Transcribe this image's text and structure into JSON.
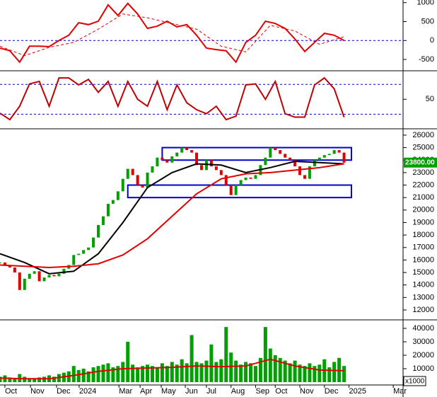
{
  "chart_data": [
    {
      "type": "line",
      "xlim": [
        0,
        82
      ],
      "ylim": [
        -780,
        1070
      ],
      "yticks": [
        1000,
        500,
        0,
        -500
      ],
      "levels": [
        0
      ],
      "level_color": "#0000c0",
      "series": [
        {
          "color": "#e00000",
          "x": [
            0,
            2,
            4,
            6,
            8,
            10,
            12,
            14,
            16,
            18,
            20,
            22,
            24,
            26,
            28,
            30,
            32,
            34,
            36,
            38,
            40,
            42,
            44,
            46,
            48,
            50,
            52,
            54,
            56,
            58,
            60,
            62,
            64,
            66,
            68,
            70
          ],
          "values": [
            -200,
            -270,
            -570,
            -150,
            -150,
            -160,
            0,
            140,
            470,
            420,
            510,
            940,
            660,
            980,
            700,
            320,
            380,
            510,
            360,
            420,
            140,
            -200,
            -240,
            -270,
            -570,
            -50,
            140,
            510,
            450,
            320,
            40,
            -290,
            -50,
            190,
            140,
            0
          ]
        },
        {
          "color": "#e00000",
          "dashed": true,
          "x": [
            0,
            5,
            10,
            15,
            20,
            25,
            30,
            35,
            40,
            45,
            50,
            55,
            60,
            65,
            70
          ],
          "values": [
            -150,
            -400,
            -180,
            -50,
            300,
            700,
            600,
            450,
            300,
            -150,
            -300,
            400,
            250,
            -100,
            100
          ]
        }
      ]
    },
    {
      "type": "line",
      "xlim": [
        0,
        82
      ],
      "ylim": [
        -8,
        106
      ],
      "yticks": [
        50
      ],
      "levels": [
        80,
        20
      ],
      "level_color": "#0000c0",
      "series": [
        {
          "color": "#c00000",
          "x": [
            0,
            2,
            4,
            6,
            8,
            10,
            12,
            14,
            16,
            18,
            20,
            22,
            24,
            26,
            28,
            30,
            32,
            34,
            36,
            38,
            40,
            42,
            44,
            46,
            48,
            50,
            52,
            54,
            56,
            58,
            60,
            62,
            64,
            66,
            68,
            70
          ],
          "values": [
            22,
            9,
            36,
            81,
            86,
            36,
            93,
            93,
            79,
            90,
            64,
            86,
            36,
            86,
            50,
            36,
            86,
            29,
            79,
            43,
            29,
            21,
            36,
            9,
            16,
            79,
            81,
            50,
            86,
            21,
            14,
            14,
            79,
            93,
            71,
            14
          ]
        }
      ]
    },
    {
      "type": "candlestick",
      "xlim": [
        0,
        82
      ],
      "ylim": [
        11320,
        26450
      ],
      "yticks": [
        12000,
        13000,
        14000,
        15000,
        16000,
        17000,
        18000,
        19000,
        20000,
        21000,
        22000,
        23000,
        24000,
        25000,
        26000
      ],
      "up_color": "#00a000",
      "down_color": "#e00000",
      "x": [
        0,
        1,
        2,
        3,
        4,
        5,
        6,
        7,
        8,
        9,
        10,
        11,
        12,
        13,
        14,
        15,
        16,
        17,
        18,
        19,
        20,
        21,
        22,
        23,
        24,
        25,
        26,
        27,
        28,
        29,
        30,
        31,
        32,
        33,
        34,
        35,
        36,
        37,
        38,
        39,
        40,
        41,
        42,
        43,
        44,
        45,
        46,
        47,
        48,
        49,
        50,
        51,
        52,
        53,
        54,
        55,
        56,
        57,
        58,
        59,
        60,
        61,
        62,
        63,
        64,
        65,
        66,
        67,
        68,
        69,
        70
      ],
      "close": [
        15800,
        15600,
        15400,
        15000,
        13600,
        14500,
        14900,
        15100,
        14300,
        14600,
        14800,
        14700,
        14900,
        15300,
        15600,
        16400,
        16500,
        16800,
        17000,
        17800,
        18800,
        19500,
        20500,
        20800,
        21500,
        22500,
        23300,
        22800,
        22000,
        21800,
        23000,
        23500,
        24200,
        24000,
        23800,
        24300,
        24600,
        25000,
        24800,
        24600,
        23600,
        23200,
        24000,
        23500,
        23200,
        22800,
        22000,
        21200,
        22000,
        22400,
        22600,
        22500,
        22800,
        23600,
        24200,
        25000,
        24800,
        24500,
        24200,
        24000,
        23500,
        22800,
        22500,
        23500,
        24000,
        24200,
        24400,
        24500,
        24800,
        24600,
        23800
      ],
      "series": [
        {
          "color": "#000000",
          "x": [
            0,
            5,
            10,
            15,
            20,
            25,
            30,
            35,
            40,
            45,
            50,
            55,
            60,
            65,
            70
          ],
          "values": [
            16500,
            15800,
            14900,
            15100,
            16500,
            19000,
            21800,
            23000,
            23700,
            23600,
            23000,
            23400,
            23900,
            23800,
            23700
          ]
        },
        {
          "color": "#e00000",
          "x": [
            0,
            5,
            10,
            15,
            20,
            25,
            30,
            35,
            40,
            45,
            50,
            55,
            60,
            65,
            70
          ],
          "values": [
            15600,
            15500,
            15400,
            15500,
            15700,
            16400,
            17700,
            19500,
            21300,
            22500,
            22900,
            23000,
            23200,
            23400,
            23700
          ]
        }
      ],
      "zones": [
        {
          "x": [
            33,
            71.5
          ],
          "range": [
            24000,
            25000
          ]
        },
        {
          "x": [
            26,
            71.5
          ],
          "range": [
            21000,
            22000
          ]
        }
      ],
      "zone_color": "#0000cc",
      "last_price": {
        "value": 23800,
        "label": "23800.00"
      },
      "last_price_color": "#00a000"
    },
    {
      "type": "bar",
      "xlim": [
        0,
        82
      ],
      "ylim": [
        -1600,
        45800
      ],
      "yticks": [
        10000,
        20000,
        30000,
        40000
      ],
      "unit_label": "x1000",
      "xticks": [
        {
          "value": 1,
          "label": "Oct"
        },
        {
          "value": 6.2,
          "label": "Nov"
        },
        {
          "value": 11.5,
          "label": "Dec"
        },
        {
          "value": 16.1,
          "label": "2024"
        },
        {
          "value": 24.2,
          "label": "Mar"
        },
        {
          "value": 28.5,
          "label": "Apr"
        },
        {
          "value": 32.8,
          "label": "May"
        },
        {
          "value": 37.7,
          "label": "Jun"
        },
        {
          "value": 42,
          "label": "Jul"
        },
        {
          "value": 47,
          "label": "Aug"
        },
        {
          "value": 52,
          "label": "Sep"
        },
        {
          "value": 56,
          "label": "Oct"
        },
        {
          "value": 61,
          "label": "Nov"
        },
        {
          "value": 66,
          "label": "Dec"
        },
        {
          "value": 71,
          "label": "2025"
        },
        {
          "value": 80,
          "label": "Mar"
        }
      ],
      "series": [
        {
          "color": "#00a000",
          "x": [
            0,
            1,
            2,
            3,
            4,
            5,
            6,
            7,
            8,
            9,
            10,
            11,
            12,
            13,
            14,
            15,
            16,
            17,
            18,
            19,
            20,
            21,
            22,
            23,
            24,
            25,
            26,
            27,
            28,
            29,
            30,
            31,
            32,
            33,
            34,
            35,
            36,
            37,
            38,
            39,
            40,
            41,
            42,
            43,
            44,
            45,
            46,
            47,
            48,
            49,
            50,
            51,
            52,
            53,
            54,
            55,
            56,
            57,
            58,
            59,
            60,
            61,
            62,
            63,
            64,
            65,
            66,
            67,
            68,
            69,
            70
          ],
          "values": [
            4000,
            5000,
            3500,
            3000,
            6000,
            4000,
            3000,
            3000,
            3500,
            4000,
            5000,
            4000,
            6000,
            7000,
            8000,
            12000,
            9000,
            10000,
            8000,
            11000,
            12000,
            13000,
            14000,
            11000,
            12000,
            15000,
            30000,
            13000,
            11000,
            12000,
            13000,
            12000,
            11000,
            14000,
            12000,
            15000,
            13000,
            17000,
            14000,
            35000,
            15000,
            14000,
            16000,
            28000,
            15000,
            17000,
            41000,
            22000,
            16000,
            13000,
            15000,
            14000,
            12000,
            18000,
            41000,
            25000,
            20000,
            18000,
            16000,
            14000,
            16000,
            13000,
            12000,
            14000,
            12000,
            13000,
            17000,
            11000,
            15000,
            18000,
            12000
          ]
        },
        {
          "type": "line",
          "color": "#e00000",
          "x": [
            0,
            5,
            10,
            15,
            20,
            25,
            30,
            35,
            40,
            45,
            50,
            55,
            60,
            65,
            70
          ],
          "values": [
            3000,
            2500,
            2500,
            5000,
            8000,
            10000,
            10500,
            11000,
            12000,
            11500,
            12000,
            17000,
            12000,
            9000,
            8500
          ]
        }
      ]
    }
  ]
}
